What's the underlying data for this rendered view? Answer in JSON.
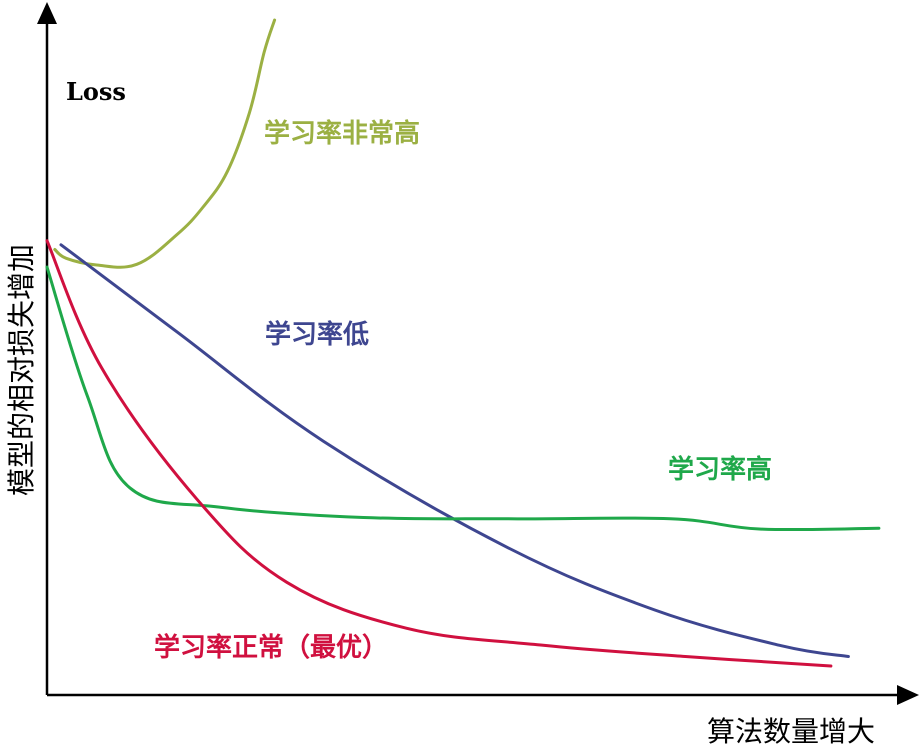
{
  "chart_data": {
    "type": "line",
    "title": "",
    "loss_label": "Loss",
    "xlabel": "算法数量增大",
    "ylabel": "模型的相对损失增加",
    "xlim": [
      0,
      10
    ],
    "ylim": [
      0,
      10
    ],
    "grid": false,
    "legend": "none (labels placed next to each line)",
    "colors": {
      "axis": "#000000",
      "very_high": "#9bb043",
      "low": "#3e4690",
      "high": "#1fa84a",
      "optimal": "#d0103f"
    },
    "series": [
      {
        "id": "very_high",
        "name": "学习率非常高",
        "x": [
          0.09,
          0.57,
          1.03,
          1.79,
          2.32,
          2.61,
          2.8
        ],
        "y": [
          6.6,
          6.37,
          6.38,
          7.23,
          8.62,
          10.0,
          10.0
        ],
        "points": [
          [
            0.09,
            6.6
          ],
          [
            0.22,
            6.47
          ],
          [
            0.57,
            6.37
          ],
          [
            1.03,
            6.38
          ],
          [
            1.49,
            6.82
          ],
          [
            1.79,
            7.23
          ],
          [
            2.07,
            7.76
          ],
          [
            2.32,
            8.62
          ],
          [
            2.49,
            9.52
          ],
          [
            2.61,
            10.0
          ]
        ]
      },
      {
        "id": "low",
        "name": "学习率低",
        "points": [
          [
            0.16,
            6.67
          ],
          [
            1.49,
            5.38
          ],
          [
            3.17,
            3.76
          ],
          [
            5.29,
            2.18
          ],
          [
            6.97,
            1.26
          ],
          [
            8.42,
            0.73
          ],
          [
            9.19,
            0.57
          ]
        ]
      },
      {
        "id": "high",
        "name": "学习率高",
        "points": [
          [
            0.0,
            6.34
          ],
          [
            0.46,
            4.44
          ],
          [
            0.95,
            3.07
          ],
          [
            2.0,
            2.78
          ],
          [
            3.63,
            2.63
          ],
          [
            5.29,
            2.61
          ],
          [
            7.15,
            2.61
          ],
          [
            8.17,
            2.46
          ],
          [
            9.54,
            2.47
          ]
        ]
      },
      {
        "id": "optimal",
        "name": "学习率正常（最优）",
        "points": [
          [
            0.0,
            6.73
          ],
          [
            0.63,
            4.84
          ],
          [
            1.72,
            2.9
          ],
          [
            2.75,
            1.67
          ],
          [
            4.12,
            0.99
          ],
          [
            5.66,
            0.74
          ],
          [
            7.32,
            0.57
          ],
          [
            8.99,
            0.43
          ]
        ]
      }
    ]
  }
}
